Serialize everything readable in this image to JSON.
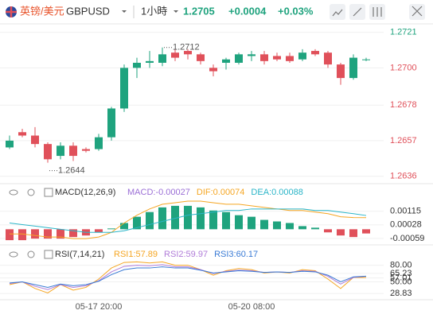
{
  "header": {
    "pair": "英镑/美元",
    "symbol": "GBPUSD",
    "interval": "1小時",
    "price": "1.2705",
    "change": "+0.0004",
    "change_pct": "+0.03%"
  },
  "chart_data": [
    {
      "type": "candlestick",
      "up_color": "#1fa37e",
      "down_color": "#e0505a",
      "categories": [
        null,
        null,
        null,
        null,
        null,
        null,
        null,
        "05-17 20:00",
        null,
        null,
        null,
        null,
        null,
        null,
        null,
        null,
        null,
        null,
        null,
        "05-20 08:00",
        null,
        null,
        null,
        null,
        null,
        null,
        null,
        null,
        null
      ],
      "open": [
        1.2653,
        1.2662,
        1.266,
        1.2655,
        1.2648,
        1.2654,
        1.2652,
        1.2652,
        1.2659,
        1.2676,
        1.27,
        1.2703,
        1.2703,
        1.2709,
        1.271,
        1.2708,
        1.27,
        1.2703,
        1.2703,
        1.2707,
        1.2708,
        1.2707,
        1.2707,
        1.2705,
        1.271,
        1.2709,
        1.2702,
        1.2694,
        1.2705
      ],
      "high": [
        1.266,
        1.2664,
        1.2665,
        1.2656,
        1.2656,
        1.2656,
        1.2653,
        1.2661,
        1.2677,
        1.2702,
        1.2706,
        1.271,
        1.2712,
        1.2711,
        1.2711,
        1.2709,
        1.2702,
        1.2706,
        1.2709,
        1.271,
        1.271,
        1.2709,
        1.2709,
        1.2711,
        1.2711,
        1.271,
        1.2703,
        1.2708,
        1.2706
      ],
      "low": [
        1.2652,
        1.2659,
        1.2653,
        1.2644,
        1.2646,
        1.2645,
        1.265,
        1.2651,
        1.2657,
        1.2674,
        1.2694,
        1.27,
        1.2701,
        1.2704,
        1.2705,
        1.2702,
        1.2695,
        1.2699,
        1.2702,
        1.2704,
        1.2702,
        1.2704,
        1.2703,
        1.2704,
        1.2707,
        1.27,
        1.269,
        1.2693,
        1.2704
      ],
      "close": [
        1.2657,
        1.266,
        1.2655,
        1.2646,
        1.2654,
        1.2648,
        1.2651,
        1.2659,
        1.2676,
        1.27,
        1.2703,
        1.2704,
        1.2708,
        1.2706,
        1.2708,
        1.2704,
        1.2698,
        1.2705,
        1.2708,
        1.2708,
        1.2704,
        1.2705,
        1.2704,
        1.2709,
        1.2708,
        1.2702,
        1.2694,
        1.2706,
        1.2705
      ],
      "annotations": [
        1.2712,
        1.2644
      ],
      "ylim": [
        1.2633,
        1.2726
      ],
      "yticks": [
        1.2721,
        {
          "value": 1.27,
          "label": "1.2700"
        },
        1.2678,
        1.2657,
        1.2636
      ],
      "ytick_colors": [
        "#1fa37e",
        "#e0505a",
        "#e0505a",
        "#e0505a",
        "#e0505a"
      ]
    },
    {
      "type": "macd",
      "title": "MACD(12,26,9)",
      "legend": [
        {
          "text": "MACD:-0.00027",
          "color": "#9b6fd6"
        },
        {
          "text": "DIF:0.00074",
          "color": "#f5a623"
        },
        {
          "text": "DEA:0.00088",
          "color": "#2bb5c8"
        }
      ],
      "histogram": [
        -0.0007,
        -0.0007,
        -0.0006,
        -0.0006,
        -0.0006,
        -0.0005,
        -0.0004,
        -0.0002,
        5e-05,
        0.0004,
        0.0008,
        0.0011,
        0.0014,
        0.0015,
        0.0015,
        0.0014,
        0.0012,
        0.0011,
        0.0009,
        0.0008,
        0.0006,
        0.0005,
        0.0004,
        0.0002,
        0.0001,
        -0.0002,
        -0.0004,
        -0.0005,
        -0.00027
      ],
      "series": [
        {
          "color": "#f5a623",
          "values": [
            -0.0003,
            -0.0003,
            -0.0004,
            -0.0005,
            -0.0005,
            -0.0006,
            -0.0006,
            -0.0005,
            -0.0002,
            0.0004,
            0.0009,
            0.0013,
            0.0016,
            0.0017,
            0.0018,
            0.0018,
            0.0017,
            0.0016,
            0.0016,
            0.0015,
            0.0014,
            0.0013,
            0.0012,
            0.0012,
            0.0011,
            0.001,
            0.0008,
            0.00075,
            0.00074
          ]
        },
        {
          "color": "#2bb5c8",
          "values": [
            0.0004,
            0.0003,
            0.0002,
            0.0001,
            0,
            -0.0001,
            -0.0002,
            -0.0002,
            -0.0002,
            -0.0001,
            0.0001,
            0.0003,
            0.0005,
            0.0007,
            0.0009,
            0.001,
            0.0011,
            0.0012,
            0.0012,
            0.0013,
            0.0013,
            0.0013,
            0.0013,
            0.0013,
            0.0012,
            0.0012,
            0.0011,
            0.001,
            0.00088
          ]
        }
      ],
      "up_color": "#1fa37e",
      "down_color": "#e0505a",
      "ylim": [
        -0.0009,
        0.0018
      ],
      "yticks": [
        0.00115,
        0.00028,
        -0.00059
      ]
    },
    {
      "type": "line",
      "title": "RSI(7,14,21)",
      "series": [
        {
          "name": "RSI1:57.89",
          "color": "#f5a623",
          "values": [
            45,
            50,
            38,
            30,
            45,
            35,
            40,
            55,
            75,
            85,
            86,
            84,
            86,
            80,
            80,
            72,
            62,
            70,
            74,
            72,
            66,
            68,
            66,
            72,
            70,
            55,
            38,
            58,
            57.89
          ]
        },
        {
          "name": "RSI2:59.97",
          "color": "#b07cd8",
          "values": [
            47,
            50,
            42,
            36,
            45,
            40,
            43,
            52,
            68,
            78,
            80,
            79,
            81,
            77,
            77,
            72,
            65,
            69,
            71,
            70,
            67,
            68,
            67,
            70,
            69,
            60,
            46,
            58,
            59.97
          ]
        },
        {
          "name": "RSI3:60.17",
          "color": "#3a7bd5",
          "values": [
            48,
            50,
            45,
            40,
            46,
            43,
            45,
            51,
            63,
            72,
            75,
            75,
            77,
            75,
            75,
            71,
            66,
            68,
            70,
            69,
            67,
            68,
            67,
            69,
            68,
            62,
            50,
            59,
            60.17
          ]
        }
      ],
      "ylim": [
        22,
        88
      ],
      "yticks": [
        {
          "value": 80,
          "label": "80.00"
        },
        65.23,
        57.01,
        {
          "value": 50,
          "label": "50.00"
        },
        28.83
      ]
    }
  ]
}
